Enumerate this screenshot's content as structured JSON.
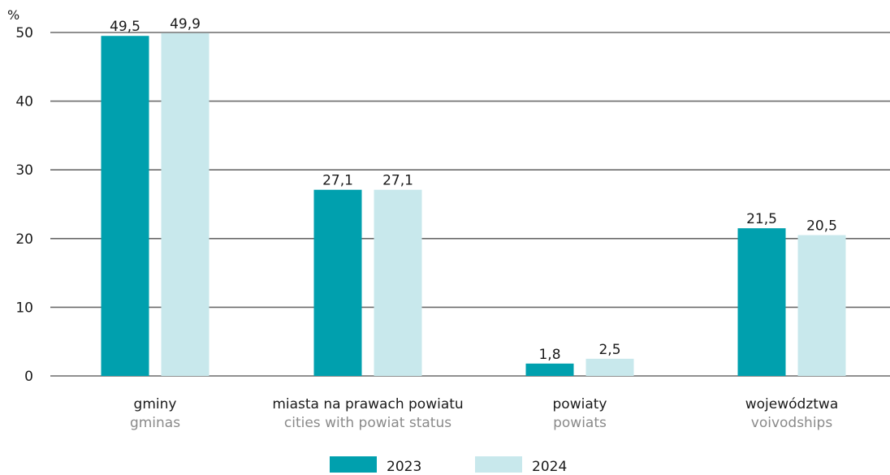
{
  "chart_data": {
    "type": "bar",
    "ylabel": "%",
    "ylim": [
      0,
      50
    ],
    "yticks": [
      0,
      10,
      20,
      30,
      40,
      50
    ],
    "grid": true,
    "legend_position": "bottom",
    "categories": [
      {
        "pl": "gminy",
        "en": "gminas"
      },
      {
        "pl": "miasta na prawach powiatu",
        "en": "cities with powiat status"
      },
      {
        "pl": "powiaty",
        "en": "powiats"
      },
      {
        "pl": "województwa",
        "en": "voivodships"
      }
    ],
    "series": [
      {
        "name": "2023",
        "color": "#00a0ae",
        "values": [
          49.5,
          27.1,
          1.8,
          21.5
        ],
        "labels": [
          "49,5",
          "27,1",
          "1,8",
          "21,5"
        ]
      },
      {
        "name": "2024",
        "color": "#c8e8ec",
        "values": [
          49.9,
          27.1,
          2.5,
          20.5
        ],
        "labels": [
          "49,9",
          "27,1",
          "2,5",
          "20,5"
        ]
      }
    ]
  }
}
